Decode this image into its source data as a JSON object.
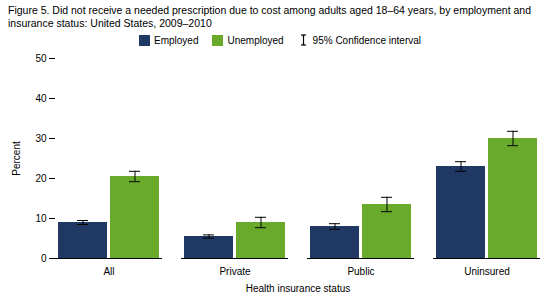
{
  "chart_data": {
    "type": "bar",
    "title": "Figure 5. Did not receive a needed prescription due to cost among adults aged 18–64 years, by employment and insurance status: United States, 2009–2010",
    "xlabel": "Health insurance status",
    "ylabel": "Percent",
    "categories": [
      "All",
      "Private",
      "Public",
      "Uninsured"
    ],
    "series": [
      {
        "name": "Employed",
        "color": "#1f3864",
        "values": [
          9.0,
          5.5,
          8.0,
          23.0
        ],
        "errors": [
          0.5,
          0.4,
          0.7,
          1.2
        ]
      },
      {
        "name": "Unemployed",
        "color": "#6aaa2a",
        "values": [
          20.5,
          9.0,
          13.5,
          30.0
        ],
        "errors": [
          1.3,
          1.3,
          1.8,
          1.8
        ]
      }
    ],
    "error_label": "95% Confidence interval",
    "error_color": "black",
    "ylim": [
      0,
      50
    ],
    "yticks": [
      0,
      10,
      20,
      30,
      40,
      50
    ],
    "grid": false,
    "legend": "top"
  }
}
